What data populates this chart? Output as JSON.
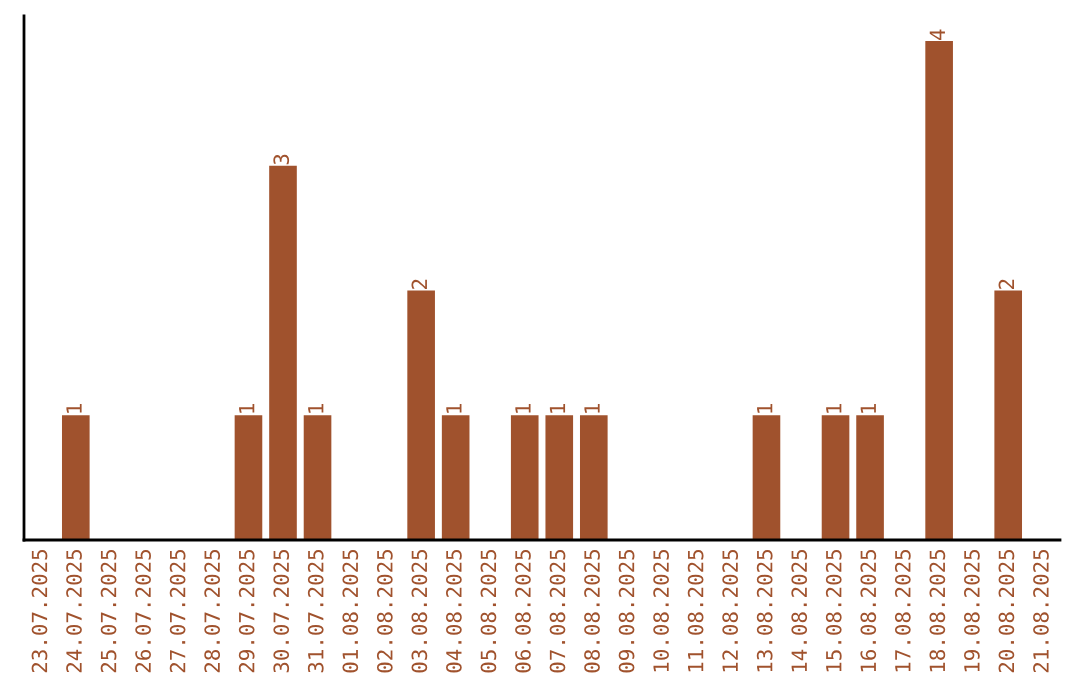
{
  "chart_data": {
    "type": "bar",
    "categories": [
      "23.07.2025",
      "24.07.2025",
      "25.07.2025",
      "26.07.2025",
      "27.07.2025",
      "28.07.2025",
      "29.07.2025",
      "30.07.2025",
      "31.07.2025",
      "01.08.2025",
      "02.08.2025",
      "03.08.2025",
      "04.08.2025",
      "05.08.2025",
      "06.08.2025",
      "07.08.2025",
      "08.08.2025",
      "09.08.2025",
      "10.08.2025",
      "11.08.2025",
      "12.08.2025",
      "13.08.2025",
      "14.08.2025",
      "15.08.2025",
      "16.08.2025",
      "17.08.2025",
      "18.08.2025",
      "19.08.2025",
      "20.08.2025",
      "21.08.2025"
    ],
    "values": [
      null,
      1,
      null,
      null,
      null,
      null,
      1,
      3,
      1,
      null,
      null,
      2,
      1,
      null,
      1,
      1,
      1,
      null,
      null,
      null,
      null,
      1,
      null,
      1,
      1,
      null,
      4,
      null,
      2,
      null
    ],
    "value_labels": [
      null,
      "1",
      null,
      null,
      null,
      null,
      "1",
      "3",
      "1",
      null,
      null,
      "2",
      "1",
      null,
      "1",
      "1",
      "1",
      null,
      null,
      null,
      null,
      "1",
      null,
      "1",
      "1",
      null,
      "4",
      null,
      "2",
      null
    ],
    "color": "#a0522d",
    "ylim": [
      0,
      4.2
    ],
    "tick_labels": "x",
    "grid": false,
    "legend": false
  }
}
